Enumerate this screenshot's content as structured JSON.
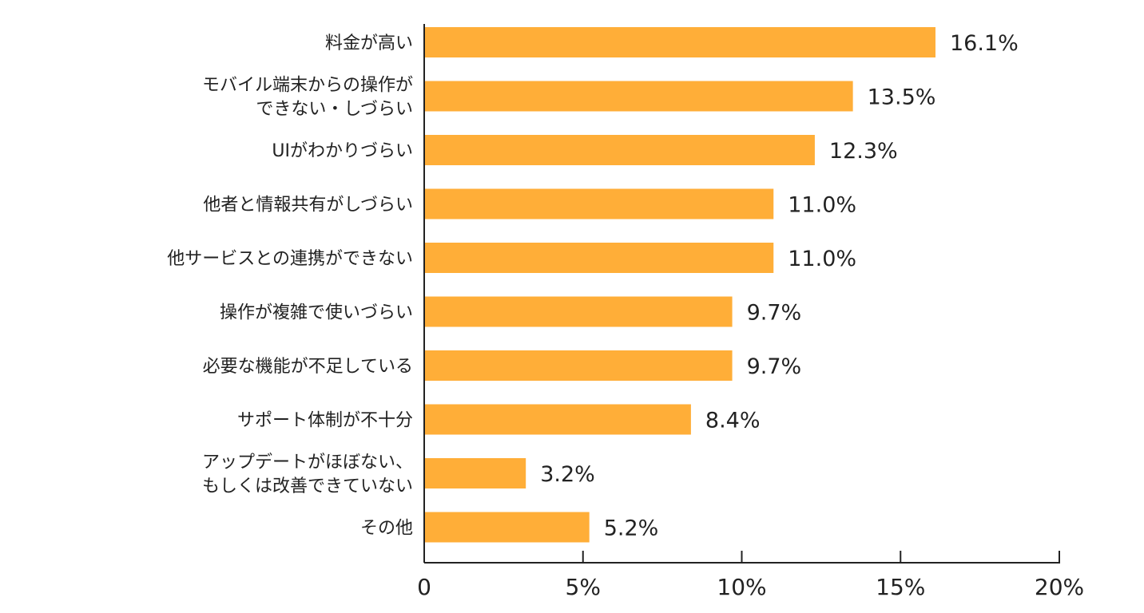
{
  "chart_data": {
    "type": "bar",
    "orientation": "horizontal",
    "categories": [
      [
        "料金が高い"
      ],
      [
        "モバイル端末からの操作が",
        "できない・しづらい"
      ],
      [
        "UIがわかりづらい"
      ],
      [
        "他者と情報共有がしづらい"
      ],
      [
        "他サービスとの連携ができない"
      ],
      [
        "操作が複雑で使いづらい"
      ],
      [
        "必要な機能が不足している"
      ],
      [
        "サポート体制が不十分"
      ],
      [
        "アップデートがほぼない、",
        "もしくは改善できていない"
      ],
      [
        "その他"
      ]
    ],
    "values": [
      16.1,
      13.5,
      12.3,
      11.0,
      11.0,
      9.7,
      9.7,
      8.4,
      3.2,
      5.2
    ],
    "value_labels": [
      "16.1%",
      "13.5%",
      "12.3%",
      "11.0%",
      "11.0%",
      "9.7%",
      "9.7%",
      "8.4%",
      "3.2%",
      "5.2%"
    ],
    "xlim": [
      0,
      20
    ],
    "ticks": [
      0,
      5,
      10,
      15,
      20
    ],
    "tick_labels": [
      "0",
      "5%",
      "10%",
      "15%",
      "20%"
    ],
    "bar_color": "#FFAE38",
    "axis_color": "#222222",
    "title": "",
    "xlabel": "",
    "ylabel": ""
  }
}
